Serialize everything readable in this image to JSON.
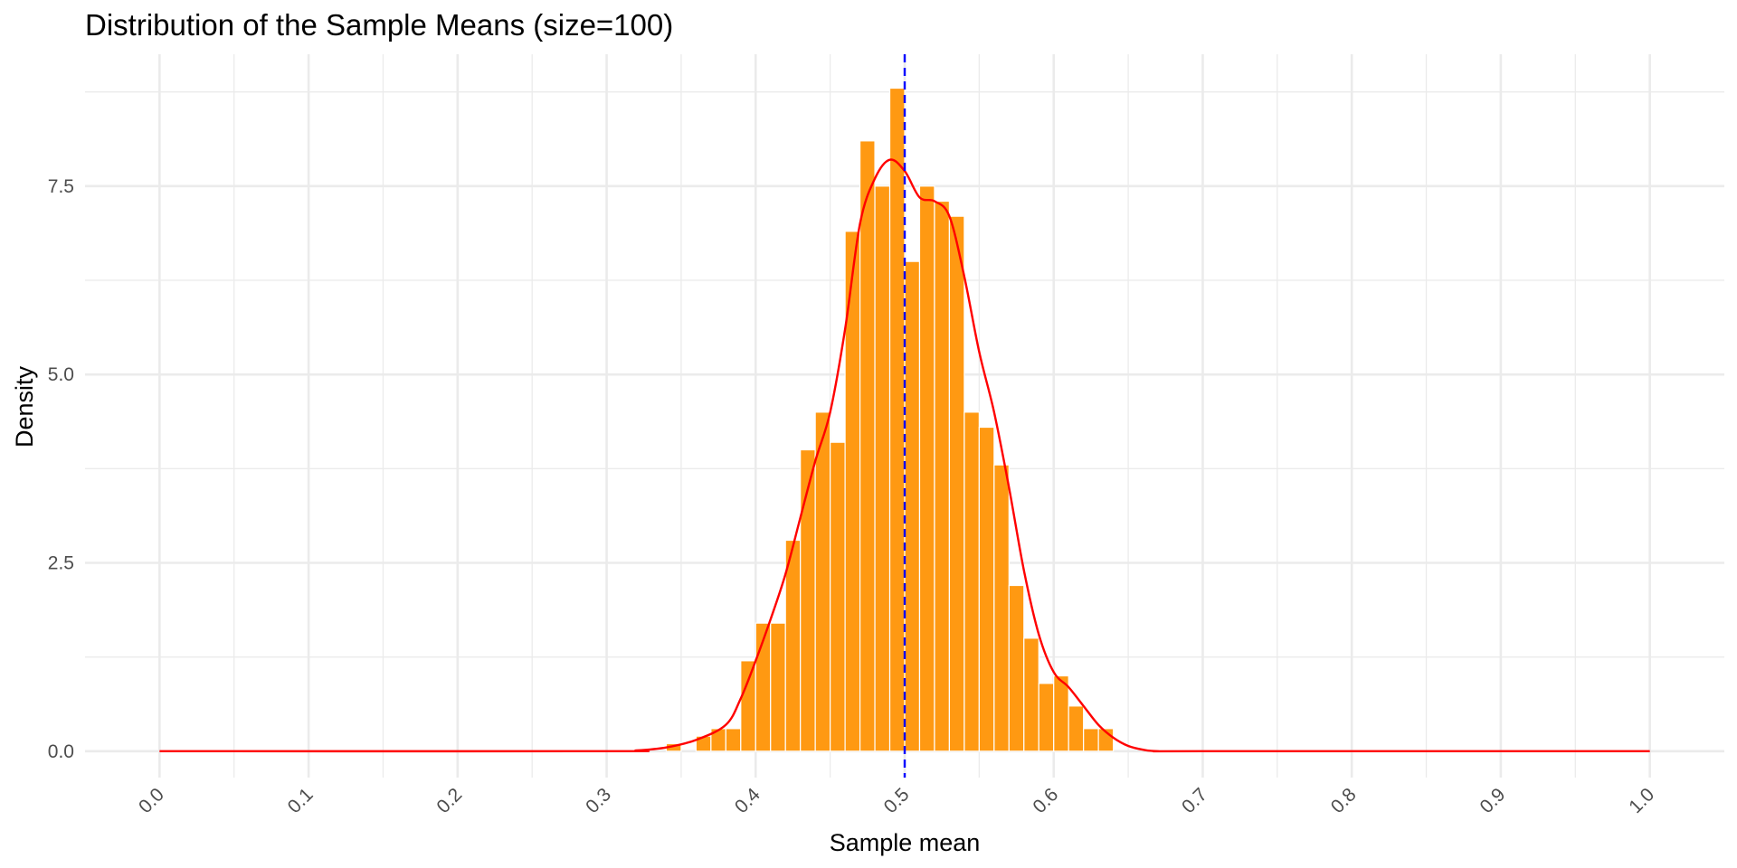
{
  "chart_data": {
    "type": "bar",
    "title": "Distribution of the Sample Means (size=100)",
    "xlabel": "Sample mean",
    "ylabel": "Density",
    "xlim": [
      -0.05,
      1.05
    ],
    "ylim": [
      -0.35,
      9.25
    ],
    "x_ticks": [
      "0.0",
      "0.1",
      "0.2",
      "0.3",
      "0.4",
      "0.5",
      "0.6",
      "0.7",
      "0.8",
      "0.9",
      "1.0"
    ],
    "y_ticks": [
      "0.0",
      "2.5",
      "5.0",
      "7.5"
    ],
    "bin_width": 0.01,
    "bins": [
      {
        "x": 0.345,
        "density": 0.1
      },
      {
        "x": 0.355,
        "density": 0.0
      },
      {
        "x": 0.365,
        "density": 0.2
      },
      {
        "x": 0.375,
        "density": 0.3
      },
      {
        "x": 0.385,
        "density": 0.3
      },
      {
        "x": 0.395,
        "density": 1.2
      },
      {
        "x": 0.405,
        "density": 1.7
      },
      {
        "x": 0.415,
        "density": 1.7
      },
      {
        "x": 0.425,
        "density": 2.8
      },
      {
        "x": 0.435,
        "density": 4.0
      },
      {
        "x": 0.445,
        "density": 4.5
      },
      {
        "x": 0.455,
        "density": 4.1
      },
      {
        "x": 0.465,
        "density": 6.9
      },
      {
        "x": 0.475,
        "density": 8.1
      },
      {
        "x": 0.485,
        "density": 7.5
      },
      {
        "x": 0.495,
        "density": 8.8
      },
      {
        "x": 0.505,
        "density": 6.5
      },
      {
        "x": 0.515,
        "density": 7.5
      },
      {
        "x": 0.525,
        "density": 7.3
      },
      {
        "x": 0.535,
        "density": 7.1
      },
      {
        "x": 0.545,
        "density": 4.5
      },
      {
        "x": 0.555,
        "density": 4.3
      },
      {
        "x": 0.565,
        "density": 3.8
      },
      {
        "x": 0.575,
        "density": 2.2
      },
      {
        "x": 0.585,
        "density": 1.5
      },
      {
        "x": 0.595,
        "density": 0.9
      },
      {
        "x": 0.605,
        "density": 1.0
      },
      {
        "x": 0.615,
        "density": 0.6
      },
      {
        "x": 0.625,
        "density": 0.3
      },
      {
        "x": 0.635,
        "density": 0.3
      }
    ],
    "density_curve": {
      "color": "#ff0000",
      "points": [
        [
          0.0,
          0.0
        ],
        [
          0.3,
          0.0
        ],
        [
          0.32,
          0.01
        ],
        [
          0.34,
          0.05
        ],
        [
          0.36,
          0.15
        ],
        [
          0.38,
          0.35
        ],
        [
          0.39,
          0.7
        ],
        [
          0.4,
          1.2
        ],
        [
          0.41,
          1.75
        ],
        [
          0.42,
          2.35
        ],
        [
          0.43,
          3.1
        ],
        [
          0.44,
          3.85
        ],
        [
          0.45,
          4.5
        ],
        [
          0.46,
          5.6
        ],
        [
          0.47,
          7.0
        ],
        [
          0.48,
          7.6
        ],
        [
          0.49,
          7.85
        ],
        [
          0.5,
          7.7
        ],
        [
          0.51,
          7.35
        ],
        [
          0.52,
          7.3
        ],
        [
          0.53,
          7.1
        ],
        [
          0.54,
          6.3
        ],
        [
          0.55,
          5.3
        ],
        [
          0.56,
          4.5
        ],
        [
          0.57,
          3.5
        ],
        [
          0.58,
          2.4
        ],
        [
          0.59,
          1.55
        ],
        [
          0.6,
          1.05
        ],
        [
          0.61,
          0.85
        ],
        [
          0.62,
          0.6
        ],
        [
          0.63,
          0.35
        ],
        [
          0.64,
          0.18
        ],
        [
          0.65,
          0.07
        ],
        [
          0.66,
          0.02
        ],
        [
          0.67,
          0.0
        ],
        [
          0.7,
          0.0
        ],
        [
          1.0,
          0.0
        ]
      ]
    },
    "reference_line": {
      "x": 0.5,
      "color": "#0000ff",
      "style": "dashed"
    },
    "bar_color": "#ff9912",
    "grid": true,
    "legend": "none"
  }
}
